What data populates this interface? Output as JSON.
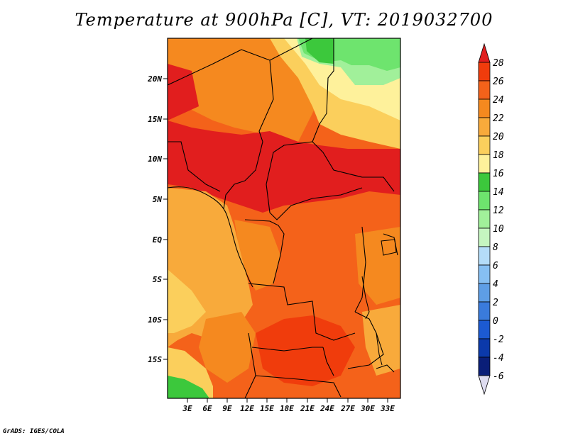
{
  "title": "Temperature at 900hPa [C], VT: 2019032700",
  "credit": "GrADS: IGES/COLA",
  "map": {
    "lat_labels": [
      "20N",
      "15N",
      "10N",
      "5N",
      "EQ",
      "5S",
      "10S",
      "15S"
    ],
    "lon_labels": [
      "3E",
      "6E",
      "9E",
      "12E",
      "15E",
      "18E",
      "21E",
      "24E",
      "27E",
      "30E",
      "33E"
    ]
  },
  "colorbar": {
    "labels": [
      "28",
      "26",
      "24",
      "22",
      "20",
      "18",
      "16",
      "14",
      "12",
      "10",
      "8",
      "6",
      "4",
      "2",
      "0",
      "-2",
      "-4",
      "-6"
    ],
    "colors": [
      "#e11e1e",
      "#f03c0c",
      "#f4621a",
      "#f5891f",
      "#f8aa3b",
      "#fbcf5c",
      "#fef19b",
      "#3cc83c",
      "#6ee46e",
      "#a1f09a",
      "#c5f5c0",
      "#b4dcf8",
      "#86bff2",
      "#5e9ee6",
      "#3a7bdc",
      "#1c5ad2",
      "#0b39aa",
      "#0a1e78",
      "#dedcf0"
    ],
    "note": "colors listed from top (>28) to bottom (<-6)"
  }
}
